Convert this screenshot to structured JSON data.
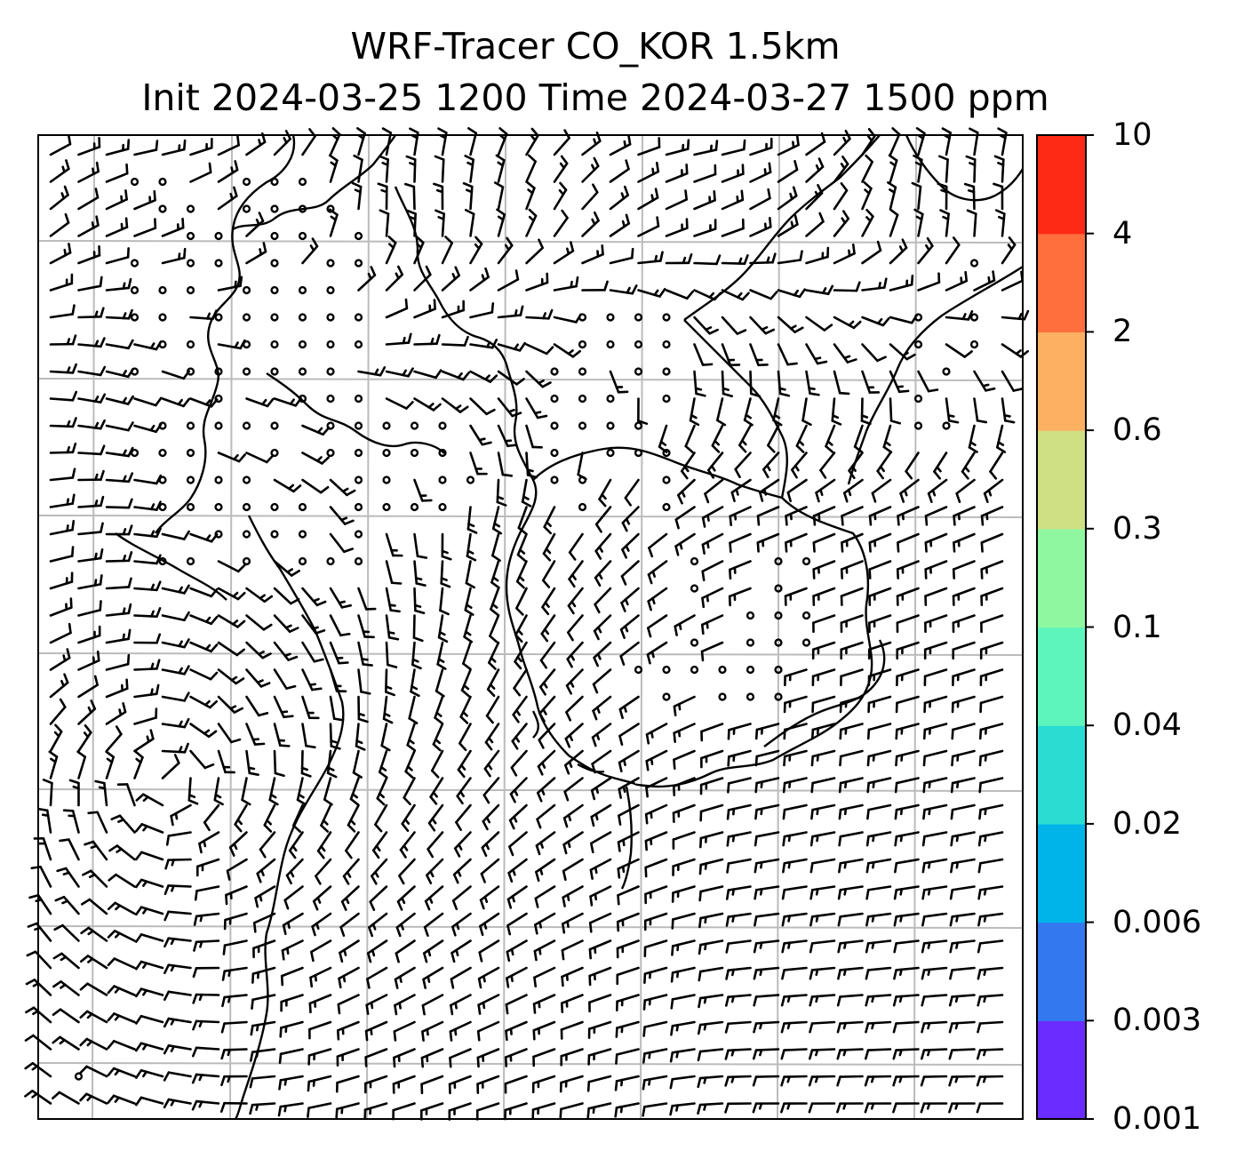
{
  "title": {
    "line1": "WRF-Tracer CO_KOR 1.5km",
    "line2": "Init 2024-03-25 1200 Time 2024-03-27 1500 ppm"
  },
  "colorbar": {
    "levels": [
      "0.001",
      "0.003",
      "0.006",
      "0.02",
      "0.04",
      "0.1",
      "0.3",
      "0.6",
      "2",
      "4",
      "10"
    ],
    "colors": [
      "#6a2cff",
      "#3478f0",
      "#00b4ea",
      "#2adcd2",
      "#5ef5bc",
      "#8ef7a0",
      "#cedf84",
      "#fdb062",
      "#ff6e3c",
      "#ff2a16"
    ]
  },
  "map": {
    "field": "CO tracer concentration (no shading visible) with wind barbs",
    "gridlines": true,
    "grid_color": "#bbbbbb",
    "line_color": "#000000"
  }
}
